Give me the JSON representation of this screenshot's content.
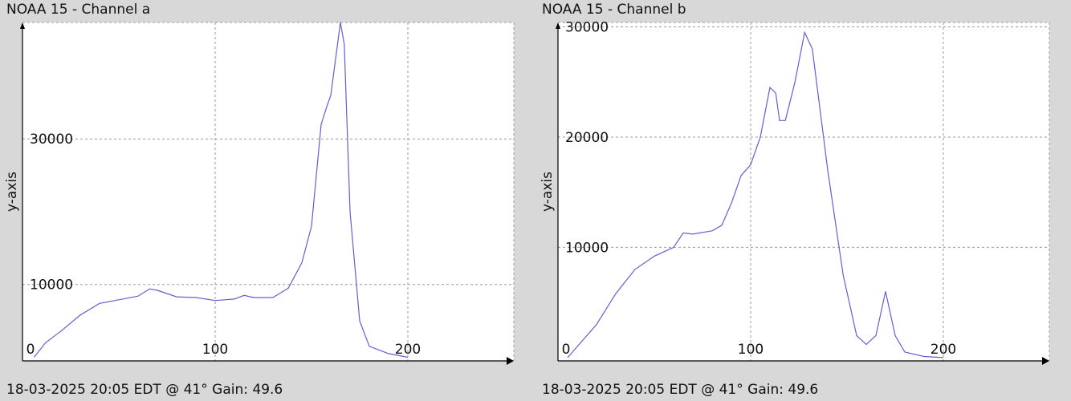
{
  "chart_data": [
    {
      "type": "line",
      "title": "NOAA 15 - Channel a",
      "footer": "18-03-2025 20:05 EDT @ 41° Gain: 49.6",
      "xlabel": "",
      "ylabel": "y-axis",
      "xlim": [
        0,
        255
      ],
      "ylim": [
        -500,
        46000
      ],
      "xticks": [
        0,
        100,
        200
      ],
      "xtick_labels": [
        "0",
        "100",
        "200"
      ],
      "yticks": [
        10000,
        30000
      ],
      "ytick_labels": [
        "10000",
        "30000"
      ],
      "grid": true,
      "series": [
        {
          "color": "#6060d0",
          "x": [
            6,
            12,
            20,
            30,
            40,
            50,
            60,
            66,
            70,
            80,
            90,
            100,
            110,
            115,
            120,
            130,
            138,
            145,
            150,
            155,
            158,
            160,
            165,
            167,
            170,
            175,
            180,
            190,
            200
          ],
          "y": [
            0,
            2000,
            3600,
            5800,
            7400,
            7900,
            8400,
            9400,
            9200,
            8300,
            8200,
            7800,
            8000,
            8500,
            8200,
            8200,
            9500,
            13000,
            18000,
            32000,
            34500,
            36000,
            46000,
            43000,
            20000,
            5000,
            1500,
            500,
            0
          ]
        }
      ]
    },
    {
      "type": "line",
      "title": "NOAA 15 - Channel b",
      "footer": "18-03-2025 20:05 EDT @ 41° Gain: 49.6",
      "xlabel": "",
      "ylabel": "y-axis",
      "xlim": [
        0,
        255
      ],
      "ylim": [
        -300,
        30400
      ],
      "xticks": [
        0,
        100,
        200
      ],
      "xtick_labels": [
        "0",
        "100",
        "200"
      ],
      "yticks": [
        10000,
        20000,
        30000
      ],
      "ytick_labels": [
        "10000",
        "20000",
        "30000"
      ],
      "grid": true,
      "series": [
        {
          "color": "#6060d0",
          "x": [
            5,
            10,
            20,
            30,
            40,
            50,
            60,
            65,
            70,
            80,
            85,
            90,
            95,
            100,
            105,
            110,
            113,
            115,
            118,
            123,
            128,
            132,
            140,
            148,
            155,
            160,
            165,
            170,
            175,
            180,
            190,
            200
          ],
          "y": [
            0,
            1000,
            3000,
            5800,
            8000,
            9200,
            10000,
            11300,
            11200,
            11500,
            12000,
            14000,
            16500,
            17500,
            20000,
            24500,
            24000,
            21500,
            21500,
            25000,
            29500,
            28000,
            17000,
            7500,
            2000,
            1200,
            2000,
            6000,
            2000,
            500,
            100,
            0
          ]
        }
      ]
    }
  ]
}
